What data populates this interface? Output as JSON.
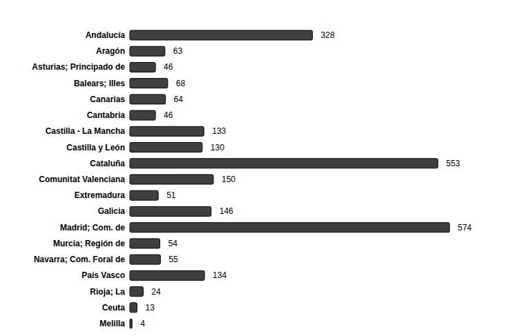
{
  "chart_data": {
    "type": "bar",
    "orientation": "horizontal",
    "categories": [
      "Andalucía",
      "Aragón",
      "Asturias; Principado de",
      "Balears; Illes",
      "Canarias",
      "Cantabria",
      "Castilla - La Mancha",
      "Castilla y León",
      "Cataluña",
      "Comunitat Valenciana",
      "Extremadura",
      "Galicia",
      "Madrid; Com. de",
      "Murcia; Región de",
      "Navarra; Com. Foral de",
      "País Vasco",
      "Rioja; La",
      "Ceuta",
      "Melilla"
    ],
    "values": [
      328,
      63,
      46,
      68,
      64,
      46,
      133,
      130,
      553,
      150,
      51,
      146,
      574,
      54,
      55,
      134,
      24,
      13,
      4
    ],
    "color": "#404040",
    "xlim": [
      0,
      574
    ],
    "grid": false,
    "data_labels": true,
    "tick_labels": "y"
  }
}
